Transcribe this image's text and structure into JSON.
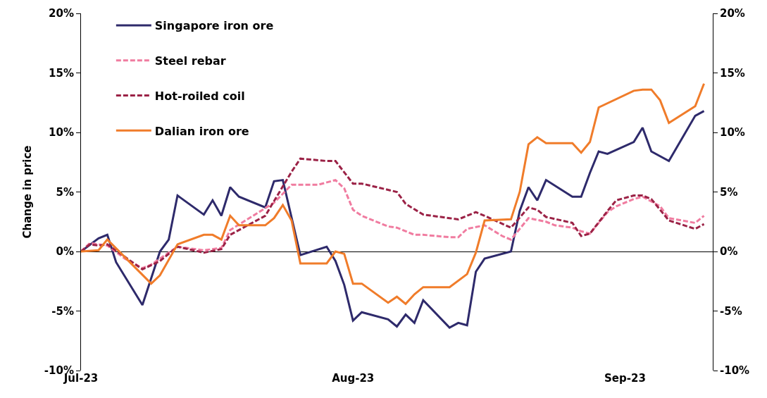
{
  "chart_data": {
    "type": "line",
    "ylabel": "Change in price",
    "legend": "top left",
    "xlim": [
      "2023-07-01",
      "2023-09-11"
    ],
    "xticks": [
      {
        "value": "2023-07-01",
        "label": "Jul-23"
      },
      {
        "value": "2023-08-01",
        "label": "Aug-23"
      },
      {
        "value": "2023-09-01",
        "label": "Sep-23"
      }
    ],
    "ylim": [
      -10,
      20
    ],
    "yticks": [
      {
        "value": -10,
        "label": "-10%"
      },
      {
        "value": -5,
        "label": "-5%"
      },
      {
        "value": 0,
        "label": "0%"
      },
      {
        "value": 5,
        "label": "5%"
      },
      {
        "value": 10,
        "label": "10%"
      },
      {
        "value": 15,
        "label": "15%"
      },
      {
        "value": 20,
        "label": "20%"
      }
    ],
    "y2lim": [
      -10,
      20
    ],
    "y2ticks": [
      {
        "value": -10,
        "label": "-10%"
      },
      {
        "value": -5,
        "label": "-5%"
      },
      {
        "value": 0,
        "label": "0%"
      },
      {
        "value": 5,
        "label": "5%"
      },
      {
        "value": 10,
        "label": "10%"
      },
      {
        "value": 15,
        "label": "15%"
      },
      {
        "value": 20,
        "label": "20%"
      }
    ],
    "series": [
      {
        "name": "Singapore iron ore",
        "color": "#2e2a6b",
        "line_style": "solid",
        "x": [
          "2023-07-01",
          "2023-07-03",
          "2023-07-04",
          "2023-07-05",
          "2023-07-08",
          "2023-07-10",
          "2023-07-11",
          "2023-07-12",
          "2023-07-15",
          "2023-07-16",
          "2023-07-17",
          "2023-07-18",
          "2023-07-19",
          "2023-07-22",
          "2023-07-23",
          "2023-07-24",
          "2023-07-26",
          "2023-07-29",
          "2023-07-30",
          "2023-07-31",
          "2023-08-01",
          "2023-08-02",
          "2023-08-05",
          "2023-08-06",
          "2023-08-07",
          "2023-08-08",
          "2023-08-09",
          "2023-08-12",
          "2023-08-13",
          "2023-08-14",
          "2023-08-15",
          "2023-08-16",
          "2023-08-19",
          "2023-08-20",
          "2023-08-21",
          "2023-08-22",
          "2023-08-23",
          "2023-08-26",
          "2023-08-27",
          "2023-08-28",
          "2023-08-29",
          "2023-08-30",
          "2023-09-02",
          "2023-09-03",
          "2023-09-04",
          "2023-09-06",
          "2023-09-09",
          "2023-09-10"
        ],
        "values": [
          0,
          1.1,
          1.4,
          -0.9,
          -4.5,
          0,
          1.0,
          4.7,
          3.1,
          4.3,
          3.0,
          5.4,
          4.6,
          3.7,
          5.9,
          6.0,
          -0.3,
          0.4,
          -0.8,
          -2.8,
          -5.8,
          -5.1,
          -5.7,
          -6.3,
          -5.3,
          -6.0,
          -4.1,
          -6.4,
          -6.0,
          -6.2,
          -1.7,
          -0.6,
          0,
          3.4,
          5.4,
          4.3,
          6.0,
          4.6,
          4.6,
          6.6,
          8.4,
          8.2,
          9.2,
          10.4,
          8.4,
          7.6,
          11.4,
          11.8
        ]
      },
      {
        "name": "Steel rebar",
        "color": "#f07ca0",
        "line_style": "dashed",
        "x": [
          "2023-07-01",
          "2023-07-02",
          "2023-07-04",
          "2023-07-06",
          "2023-07-08",
          "2023-07-09",
          "2023-07-12",
          "2023-07-15",
          "2023-07-17",
          "2023-07-18",
          "2023-07-23",
          "2023-07-25",
          "2023-07-28",
          "2023-07-30",
          "2023-07-31",
          "2023-08-01",
          "2023-08-02",
          "2023-08-05",
          "2023-08-06",
          "2023-08-08",
          "2023-08-09",
          "2023-08-12",
          "2023-08-13",
          "2023-08-14",
          "2023-08-16",
          "2023-08-18",
          "2023-08-19",
          "2023-08-21",
          "2023-08-23",
          "2023-08-24",
          "2023-08-26",
          "2023-08-27",
          "2023-08-28",
          "2023-08-30",
          "2023-08-31",
          "2023-09-02",
          "2023-09-03",
          "2023-09-05",
          "2023-09-06",
          "2023-09-09",
          "2023-09-10"
        ],
        "values": [
          0,
          0.7,
          0.5,
          -0.6,
          -1.4,
          -1.1,
          0.4,
          0.1,
          0.3,
          1.8,
          4.1,
          5.6,
          5.6,
          6.0,
          5.3,
          3.5,
          3.0,
          2.1,
          2.0,
          1.4,
          1.4,
          1.2,
          1.2,
          1.9,
          2.2,
          1.3,
          1.0,
          2.8,
          2.5,
          2.2,
          2.0,
          1.7,
          1.5,
          3.3,
          3.8,
          4.4,
          4.6,
          3.8,
          2.8,
          2.4,
          3.0
        ]
      },
      {
        "name": "Hot-roiled coil",
        "color": "#9b2246",
        "line_style": "dashed",
        "x": [
          "2023-07-01",
          "2023-07-02",
          "2023-07-03",
          "2023-07-04",
          "2023-07-08",
          "2023-07-10",
          "2023-07-12",
          "2023-07-15",
          "2023-07-17",
          "2023-07-18",
          "2023-07-22",
          "2023-07-25",
          "2023-07-26",
          "2023-07-29",
          "2023-07-30",
          "2023-08-01",
          "2023-08-02",
          "2023-08-06",
          "2023-08-07",
          "2023-08-09",
          "2023-08-12",
          "2023-08-13",
          "2023-08-15",
          "2023-08-16",
          "2023-08-19",
          "2023-08-21",
          "2023-08-22",
          "2023-08-23",
          "2023-08-26",
          "2023-08-27",
          "2023-08-28",
          "2023-08-30",
          "2023-08-31",
          "2023-09-02",
          "2023-09-03",
          "2023-09-04",
          "2023-09-06",
          "2023-09-09",
          "2023-09-10"
        ],
        "values": [
          0,
          0.6,
          0.5,
          0.6,
          -1.5,
          -0.8,
          0.4,
          -0.1,
          0.2,
          1.4,
          3.0,
          6.7,
          7.8,
          7.6,
          7.6,
          5.7,
          5.7,
          5.0,
          4.0,
          3.1,
          2.8,
          2.7,
          3.3,
          3.0,
          2.0,
          3.7,
          3.5,
          2.9,
          2.4,
          1.3,
          1.5,
          3.4,
          4.3,
          4.7,
          4.7,
          4.4,
          2.6,
          1.9,
          2.3
        ]
      },
      {
        "name": "Dalian iron ore",
        "color": "#f07c2a",
        "line_style": "solid",
        "x": [
          "2023-07-01",
          "2023-07-03",
          "2023-07-04",
          "2023-07-09",
          "2023-07-10",
          "2023-07-12",
          "2023-07-15",
          "2023-07-16",
          "2023-07-17",
          "2023-07-18",
          "2023-07-19",
          "2023-07-22",
          "2023-07-23",
          "2023-07-24",
          "2023-07-25",
          "2023-07-26",
          "2023-07-29",
          "2023-07-30",
          "2023-07-31",
          "2023-08-01",
          "2023-08-02",
          "2023-08-05",
          "2023-08-06",
          "2023-08-07",
          "2023-08-08",
          "2023-08-09",
          "2023-08-12",
          "2023-08-14",
          "2023-08-15",
          "2023-08-16",
          "2023-08-19",
          "2023-08-20",
          "2023-08-21",
          "2023-08-22",
          "2023-08-23",
          "2023-08-26",
          "2023-08-27",
          "2023-08-28",
          "2023-08-29",
          "2023-09-02",
          "2023-09-03",
          "2023-09-04",
          "2023-09-05",
          "2023-09-06",
          "2023-09-09",
          "2023-09-10"
        ],
        "values": [
          0,
          0.1,
          1.0,
          -2.7,
          -2.0,
          0.6,
          1.4,
          1.4,
          1.0,
          3.0,
          2.2,
          2.2,
          2.8,
          3.9,
          2.6,
          -1.0,
          -1.0,
          0,
          -0.2,
          -2.7,
          -2.7,
          -4.3,
          -3.8,
          -4.4,
          -3.6,
          -3.0,
          -3.0,
          -1.9,
          -0.1,
          2.6,
          2.7,
          5.0,
          9.0,
          9.6,
          9.1,
          9.1,
          8.3,
          9.2,
          12.1,
          13.5,
          13.6,
          13.6,
          12.7,
          10.8,
          12.2,
          14.1
        ]
      }
    ]
  }
}
